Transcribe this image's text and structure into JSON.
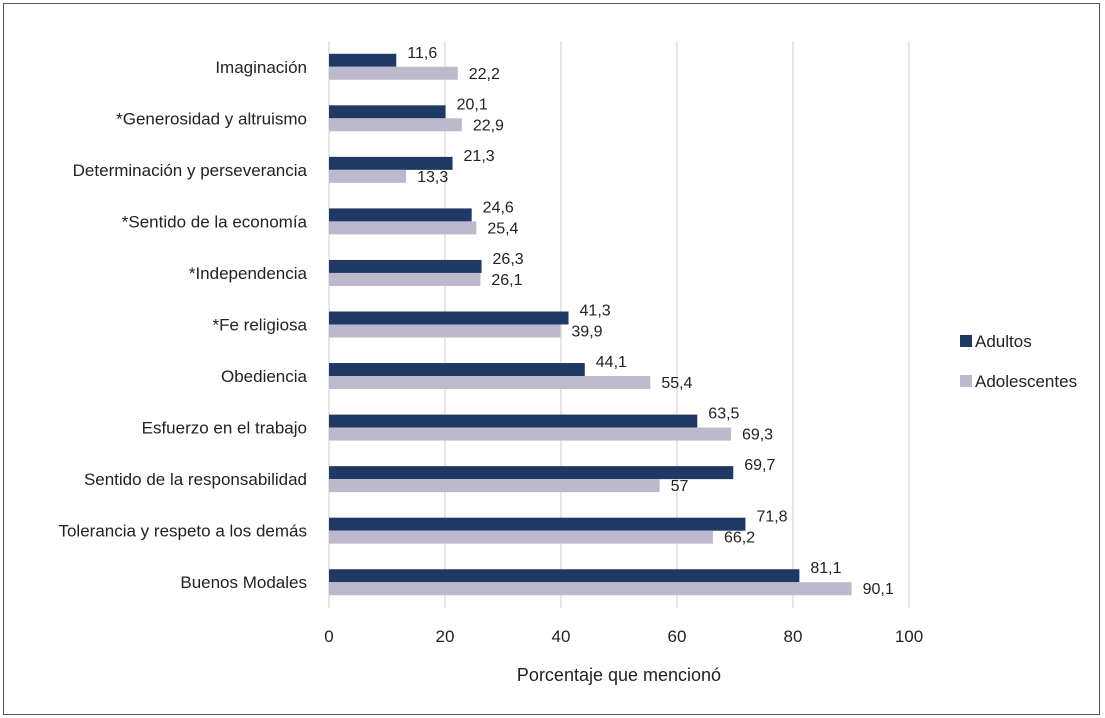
{
  "chart_data": {
    "type": "bar",
    "orientation": "horizontal",
    "categories": [
      "Imaginación",
      "*Generosidad y altruismo",
      "Determinación y perseverancia",
      "*Sentido de la economía",
      "*Independencia",
      "*Fe religiosa",
      "Obediencia",
      "Esfuerzo en el trabajo",
      "Sentido de la responsabilidad",
      "Tolerancia y respeto a los demás",
      "Buenos Modales"
    ],
    "series": [
      {
        "name": "Adultos",
        "color": "#203864",
        "values": [
          11.6,
          20.1,
          21.3,
          24.6,
          26.3,
          41.3,
          44.1,
          63.5,
          69.7,
          71.8,
          81.1
        ],
        "labels": [
          "11,6",
          "20,1",
          "21,3",
          "24,6",
          "26,3",
          "41,3",
          "44,1",
          "63,5",
          "69,7",
          "71,8",
          "81,1"
        ]
      },
      {
        "name": "Adolescentes",
        "color": "#bcb9cc",
        "values": [
          22.2,
          22.9,
          13.3,
          25.4,
          26.1,
          39.9,
          55.4,
          69.3,
          57,
          66.2,
          90.1
        ],
        "labels": [
          "22,2",
          "22,9",
          "13,3",
          "25,4",
          "26,1",
          "39,9",
          "55,4",
          "69,3",
          "57",
          "66,2",
          "90,1"
        ]
      }
    ],
    "xlim": [
      0,
      100
    ],
    "xticks": [
      0,
      20,
      40,
      60,
      80,
      100
    ],
    "xtick_labels": [
      "0",
      "20",
      "40",
      "60",
      "80",
      "100"
    ],
    "xlabel": "Porcentaje que mencionó",
    "ylabel": "",
    "title": "",
    "grid": "vertical",
    "legend_position": "right"
  }
}
